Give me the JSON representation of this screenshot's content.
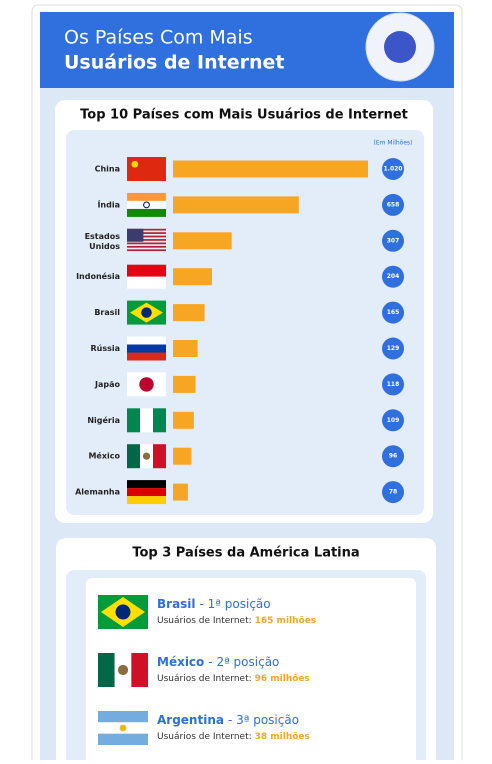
{
  "header": {
    "title_line1": "Os Países Com Mais",
    "title_line2": "Usuários de Internet"
  },
  "chart_data": {
    "type": "bar",
    "title": "Top 10 Países com Mais Usuários de Internet",
    "unit_note": "(Em Milhões)",
    "categories": [
      "China",
      "Índia",
      "Estados Unidos",
      "Indonésia",
      "Brasil",
      "Rússia",
      "Japão",
      "Nigéria",
      "México",
      "Alemanha"
    ],
    "values": [
      1020,
      658,
      307,
      204,
      165,
      129,
      118,
      109,
      96,
      78
    ],
    "value_labels": [
      "1.020",
      "658",
      "307",
      "204",
      "165",
      "129",
      "118",
      "109",
      "96",
      "78"
    ],
    "color": "#f6a623"
  },
  "latam": {
    "title": "Top 3 Países da América Latina",
    "items": [
      {
        "country": "Brasil",
        "position": "- 1ª posição",
        "users_label": "Usuários de Internet:",
        "users": "165 milhões"
      },
      {
        "country": "México",
        "position": "- 2ª posição",
        "users_label": "Usuários de Internet:",
        "users": "96 milhões"
      },
      {
        "country": "Argentina",
        "position": "- 3ª posição",
        "users_label": "Usuários de Internet:",
        "users": "38 milhões"
      }
    ]
  }
}
